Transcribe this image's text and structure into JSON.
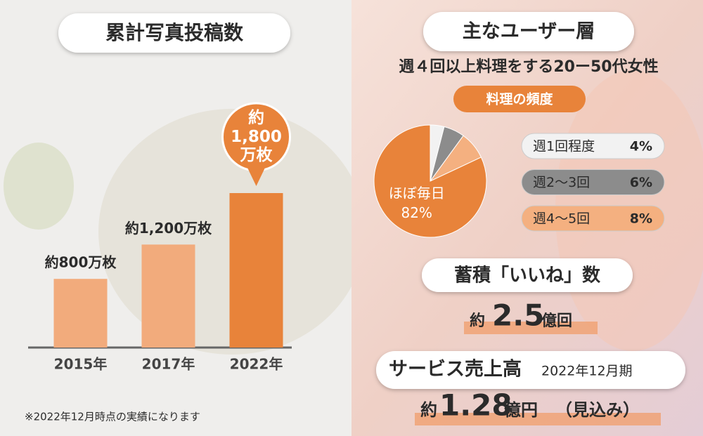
{
  "chart_data": [
    {
      "type": "bar",
      "title": "累計写真投稿数",
      "categories": [
        "2015年",
        "2017年",
        "2022年"
      ],
      "values": [
        800,
        1200,
        1800
      ],
      "value_labels": [
        "約800万枚",
        "約1,200万枚",
        "約1,800万枚"
      ],
      "colors": [
        "#f2ab7c",
        "#f2ab7c",
        "#e8833a"
      ]
    },
    {
      "type": "pie",
      "title": "料理の頻度",
      "categories": [
        "週1回程度",
        "週2〜3回",
        "週4〜5回",
        "ほぼ毎日"
      ],
      "values": [
        4,
        6,
        8,
        82
      ],
      "value_labels": [
        "4%",
        "6%",
        "8%",
        "82%"
      ],
      "colors": [
        "#f2f2f2",
        "#8c8c8c",
        "#f4b080",
        "#e8833a"
      ]
    }
  ],
  "footnote": "※2022年12月時点の実績になります",
  "users": {
    "title": "主なユーザー層",
    "subtitle": "週４回以上料理をする20ー50代女性"
  },
  "likes": {
    "title": "蓄積「いいね」数",
    "prefix": "約",
    "number": "2.5",
    "unit": "億回"
  },
  "sales": {
    "title": "サービス売上高",
    "period": "2022年12月期",
    "prefix": "約",
    "number": "1.28",
    "unit": "億円",
    "note": "（見込み）"
  }
}
